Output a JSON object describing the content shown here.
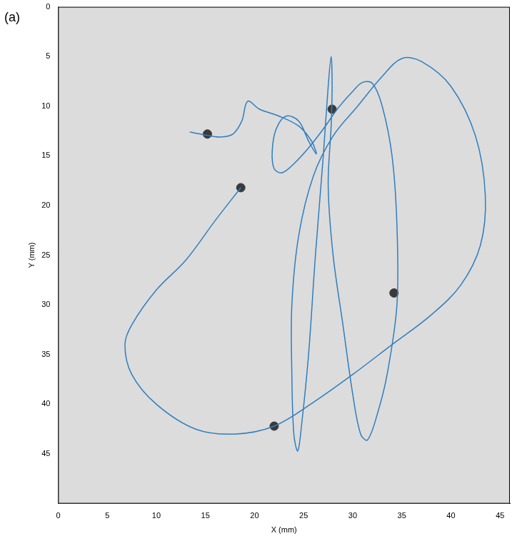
{
  "chart_data": {
    "type": "line",
    "panel_label": "(a)",
    "x_label": "X (mm)",
    "y_label": "Y (mm)",
    "xlim": [
      0,
      46
    ],
    "ylim": [
      50,
      0
    ],
    "xticks": [
      0,
      5,
      10,
      15,
      20,
      25,
      30,
      35,
      40,
      45
    ],
    "yticks": [
      0,
      5,
      10,
      15,
      20,
      25,
      30,
      35,
      40,
      45
    ],
    "grid": false,
    "series": [
      {
        "type": "line",
        "color": "#2e7ebf",
        "marker": "none",
        "line_style": "solid",
        "x": [
          13.4,
          15,
          16.5,
          17.8,
          18.7,
          19.3,
          20.5,
          22.5,
          24.5,
          25.8,
          26.3,
          25.5,
          24.5,
          23.2,
          22.2,
          21.8,
          22,
          22.8,
          24,
          25.5,
          27,
          28.5,
          30,
          31,
          32,
          33,
          34,
          34.5,
          34.5,
          33.5,
          32.5,
          31.5,
          30.8,
          30,
          29,
          28,
          27.5,
          27.8,
          27.9,
          27.8,
          27.5,
          27,
          26.2,
          25.5,
          24.8,
          24.4,
          24,
          23.8,
          23.8,
          24.5,
          26,
          28,
          30.5,
          33,
          35,
          37,
          40,
          42.5,
          43.5,
          43,
          41,
          38,
          34,
          30,
          26,
          22,
          18,
          14,
          10,
          7.5,
          6.8,
          7.5,
          10,
          13,
          16,
          18.6
        ],
        "values": [
          12.6,
          12.9,
          13.1,
          12.8,
          11.5,
          9.5,
          10.3,
          11,
          12,
          13.5,
          14.8,
          13.5,
          11.5,
          11,
          12.3,
          14.5,
          16.3,
          16.7,
          15.8,
          14.2,
          12.3,
          10.2,
          8.5,
          7.6,
          7.7,
          10,
          15,
          22,
          30,
          37,
          41,
          43.6,
          43,
          39,
          32,
          25,
          18,
          12,
          8,
          5,
          8,
          15,
          25,
          35,
          42,
          44.7,
          43,
          37,
          30,
          23,
          17,
          13,
          10,
          7,
          5.2,
          5.5,
          8,
          13,
          19,
          24,
          28,
          31,
          34,
          37,
          39.8,
          42.2,
          43,
          42.5,
          40,
          37,
          34,
          32,
          28.5,
          25.5,
          21.5,
          18.2
        ]
      },
      {
        "type": "scatter",
        "color": "#3a3a3a",
        "marker": "circle",
        "x": [
          15.2,
          18.6,
          27.9,
          34.2,
          22
        ],
        "values": [
          12.8,
          18.2,
          10.3,
          28.8,
          42.2
        ]
      }
    ]
  }
}
